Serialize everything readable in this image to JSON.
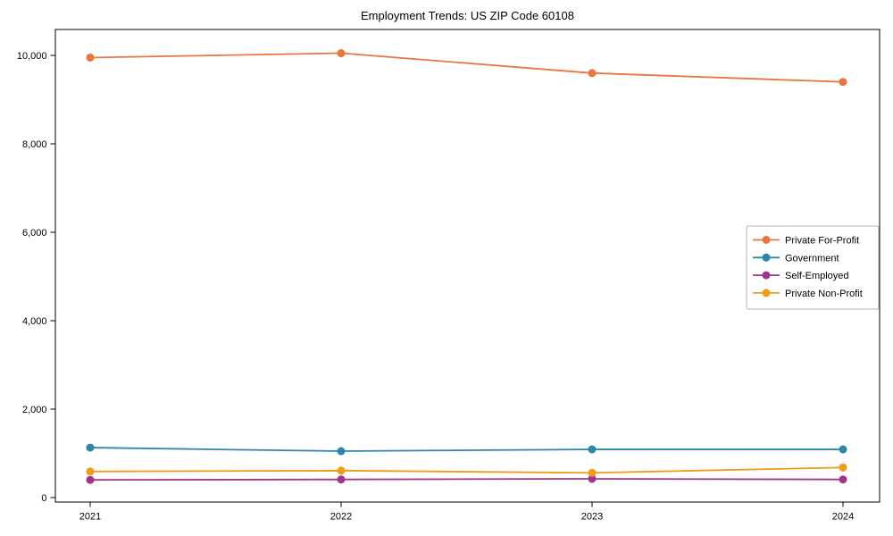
{
  "chart_data": {
    "type": "line",
    "title": "Employment Trends: US ZIP Code 60108",
    "categories": [
      "2021",
      "2022",
      "2023",
      "2024"
    ],
    "series": [
      {
        "name": "Private For-Profit",
        "color": "#e8763d",
        "values": [
          9950,
          10050,
          9600,
          9400
        ]
      },
      {
        "name": "Government",
        "color": "#2e87a8",
        "values": [
          1130,
          1050,
          1090,
          1090
        ]
      },
      {
        "name": "Self-Employed",
        "color": "#a13688",
        "values": [
          400,
          410,
          425,
          410
        ]
      },
      {
        "name": "Private Non-Profit",
        "color": "#f09c1a",
        "values": [
          590,
          610,
          560,
          680
        ]
      }
    ],
    "xlabel": "",
    "ylabel": "",
    "ylim": [
      0,
      10000
    ],
    "yticks": [
      0,
      2000,
      4000,
      6000,
      8000,
      10000
    ],
    "ytick_labels": [
      "0",
      "2,000",
      "4,000",
      "6,000",
      "8,000",
      "10,000"
    ],
    "grid": false,
    "marker": "circle",
    "legend_position": "center-right",
    "axis_color": "#000000",
    "background_color": "#ffffff",
    "legend_border_color": "#b3b3b3"
  }
}
